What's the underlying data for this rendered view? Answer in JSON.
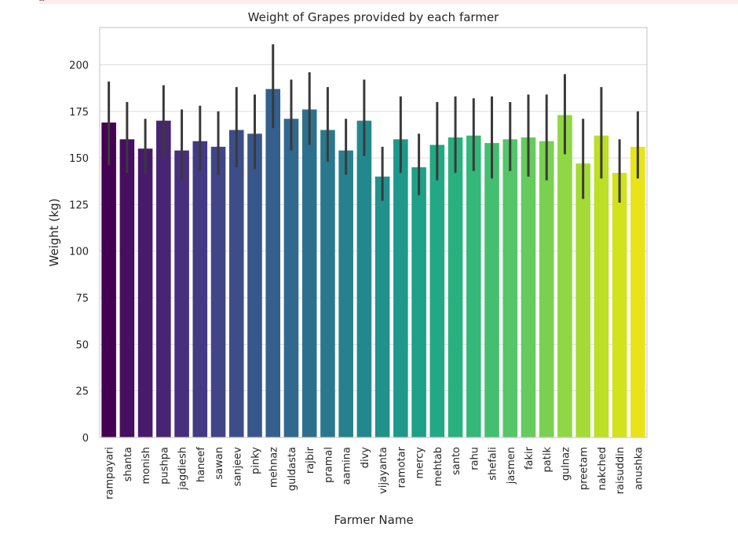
{
  "warning_text": "…",
  "chart_data": {
    "type": "bar",
    "title": "Weight of Grapes provided by each farmer",
    "xlabel": "Farmer Name",
    "ylabel": "Weight (kg)",
    "ylim": [
      0,
      220
    ],
    "yticks": [
      "0",
      "25",
      "50",
      "75",
      "100",
      "125",
      "150",
      "175",
      "200"
    ],
    "grid": true,
    "error_bars": true,
    "palette": "viridis",
    "categories": [
      "rampayari",
      "shanta",
      "monish",
      "pushpa",
      "jagdiesh",
      "haneef",
      "sawan",
      "sanjeev",
      "pinky",
      "mehnaz",
      "guldasta",
      "rajbir",
      "pramal",
      "aamina",
      "divy",
      "vijayanta",
      "ramotar",
      "mercy",
      "mehtab",
      "santo",
      "rahu",
      "shefali",
      "jasmen",
      "fakir",
      "patik",
      "gulnaz",
      "preetam",
      "nakched",
      "raisuddin",
      "anushka"
    ],
    "values": [
      169,
      160,
      155,
      170,
      154,
      159,
      156,
      165,
      163,
      187,
      171,
      176,
      165,
      154,
      170,
      140,
      160,
      145,
      157,
      161,
      162,
      158,
      160,
      161,
      159,
      173,
      147,
      162,
      142,
      156
    ],
    "err_low": [
      146,
      142,
      142,
      150,
      138,
      143,
      141,
      145,
      144,
      166,
      154,
      157,
      148,
      141,
      151,
      127,
      142,
      130,
      138,
      142,
      143,
      139,
      143,
      140,
      138,
      152,
      128,
      139,
      126,
      139
    ],
    "err_high": [
      191,
      180,
      171,
      189,
      176,
      178,
      175,
      188,
      184,
      211,
      192,
      196,
      188,
      171,
      192,
      156,
      183,
      163,
      180,
      183,
      182,
      183,
      180,
      184,
      184,
      195,
      171,
      188,
      160,
      175
    ],
    "colors": [
      "#440154",
      "#470e61",
      "#481a6c",
      "#482475",
      "#472f7d",
      "#443983",
      "#414487",
      "#3d4d8a",
      "#39568c",
      "#355f8d",
      "#31688e",
      "#2d708e",
      "#2a788e",
      "#27808e",
      "#23888e",
      "#21918c",
      "#1f988b",
      "#1fa088",
      "#22a884",
      "#2ab07f",
      "#35b779",
      "#44bf70",
      "#54c568",
      "#66cb5d",
      "#7ad151",
      "#8fd744",
      "#a5db36",
      "#bddf26",
      "#d2e21b",
      "#e8e419"
    ]
  }
}
